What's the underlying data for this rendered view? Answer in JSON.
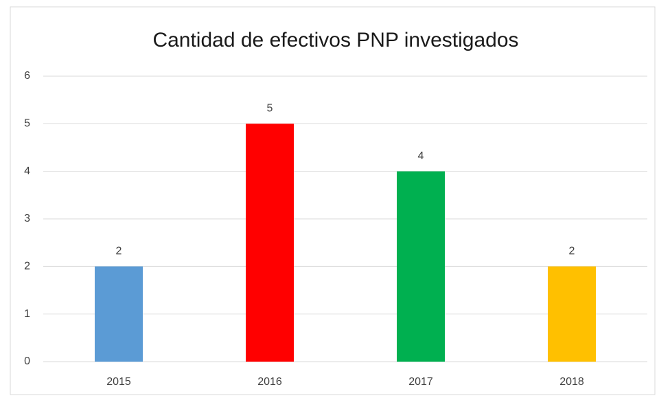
{
  "chart_data": {
    "type": "bar",
    "title": "Cantidad de efectivos PNP investigados",
    "categories": [
      "2015",
      "2016",
      "2017",
      "2018"
    ],
    "values": [
      2,
      5,
      4,
      2
    ],
    "colors": [
      "#5b9bd5",
      "#ff0000",
      "#00b050",
      "#ffc000"
    ],
    "ylim": [
      0,
      6
    ],
    "yticks": [
      0,
      1,
      2,
      3,
      4,
      5,
      6
    ],
    "grid": true
  }
}
